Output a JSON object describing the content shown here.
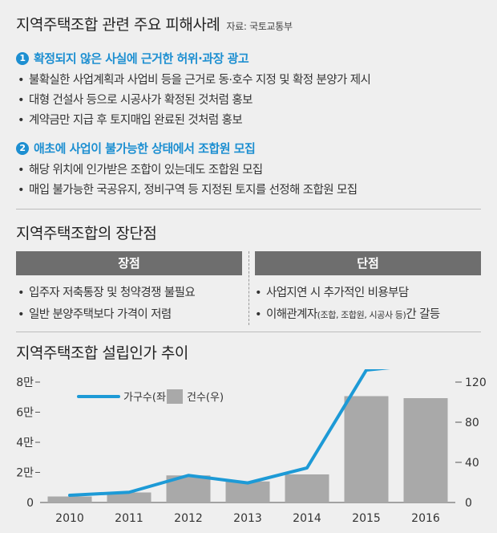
{
  "section1": {
    "title": "지역주택조합 관련 주요 피해사례",
    "source": "자료: 국토교통부",
    "groups": [
      {
        "number": "1",
        "heading": "확정되지 않은 사실에 근거한 허위·과장 광고",
        "bullets": [
          "불확실한 사업계획과 사업비 등을 근거로 동·호수 지정 및 확정 분양가 제시",
          "대형 건설사 등으로 시공사가 확정된 것처럼 홍보",
          "계약금만 지급 후 토지매입 완료된 것처럼 홍보"
        ]
      },
      {
        "number": "2",
        "heading": "애초에 사업이 불가능한 상태에서 조합원 모집",
        "bullets": [
          "해당 위치에 인가받은 조합이 있는데도 조합원 모집",
          "매입 불가능한 국공유지, 정비구역 등 지정된 토지를 선정해 조합원 모집"
        ]
      }
    ]
  },
  "section2": {
    "title": "지역주택조합의 장단점",
    "pros_header": "장점",
    "cons_header": "단점",
    "pros": [
      "입주자 저축통장 및 청약경쟁 불필요",
      "일반 분양주택보다 가격이 저렴"
    ],
    "cons": [
      "사업지연 시 추가적인 비용부담"
    ],
    "cons2": {
      "pre": "이해관계자",
      "small": "(조합, 조합원, 시공사 등)",
      "post": "간 갈등"
    }
  },
  "section3": {
    "title": "지역주택조합 설립인가 추이"
  },
  "chart_data": {
    "type": "bar+line",
    "categories": [
      "2010",
      "2011",
      "2012",
      "2013",
      "2014",
      "2015",
      "2016"
    ],
    "series": [
      {
        "name": "건수(우)",
        "kind": "bar",
        "axis": "right",
        "values": [
          6,
          10,
          27,
          21,
          28,
          106,
          104
        ]
      },
      {
        "name": "가구수(좌)",
        "kind": "line",
        "axis": "left",
        "values": [
          4800,
          6800,
          18000,
          13000,
          23000,
          88000,
          92000
        ]
      }
    ],
    "left_axis": {
      "ticks": [
        0,
        20000,
        40000,
        60000,
        80000
      ],
      "tick_labels": [
        "0",
        "2만",
        "4만",
        "6만",
        "8만"
      ],
      "range": [
        0,
        80000
      ]
    },
    "right_axis": {
      "ticks": [
        0,
        40,
        80,
        120
      ],
      "tick_labels": [
        "0",
        "40",
        "80",
        "120"
      ],
      "range": [
        0,
        120
      ]
    },
    "legend_placement": "top-left",
    "colors": {
      "bar": "#a9a9a9",
      "line": "#1d9ad6"
    }
  }
}
